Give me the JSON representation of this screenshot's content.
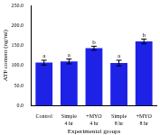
{
  "chart_data": {
    "type": "bar",
    "x_label": "Experimental groups",
    "y_label": "ATP content (ng/ml)",
    "categories": [
      "Control",
      "Simple 4 hr",
      "+MYO 4 hr",
      "Simple 8 hr",
      "+MYO 8 hr"
    ],
    "values": [
      107,
      110,
      143,
      106,
      160
    ],
    "errors": [
      6,
      6,
      5,
      7,
      6
    ],
    "letters": [
      "a",
      "a",
      "b",
      "a",
      "b"
    ],
    "color": "#1e22e6",
    "ylim": [
      0,
      250
    ],
    "yticks": [
      {
        "value": 0,
        "label": "0.0"
      },
      {
        "value": 50,
        "label": "50.0"
      },
      {
        "value": 100,
        "label": "100.0"
      },
      {
        "value": 150,
        "label": "150.0"
      },
      {
        "value": 200,
        "label": "200.0"
      },
      {
        "value": 250,
        "label": "250.0"
      }
    ],
    "grid": false
  }
}
